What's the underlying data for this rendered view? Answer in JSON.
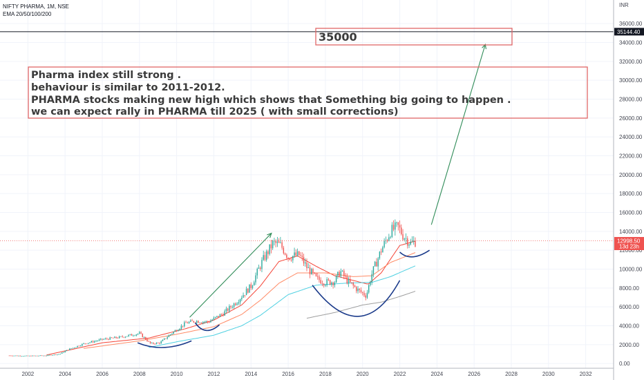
{
  "header": {
    "title": "NIFTY PHARMA, 1M, NSE",
    "indicator": "EMA 20/50/100/200"
  },
  "axis_unit": "INR",
  "price_tags": {
    "level": "35144.40",
    "last": "12998.50",
    "countdown": "13d 23h"
  },
  "annotations": {
    "target": "35000",
    "note_lines": [
      "Pharma index still strong .",
      "behaviour is similar to 2011-2012.",
      "PHARMA stocks making new high which shows that Something big going to happen .",
      "we can expect rally in PHARMA  till 2025 ( with small corrections)"
    ]
  },
  "colors": {
    "up": "#26a69a",
    "down": "#ef5350",
    "ema20": "#f44336",
    "ema50": "#ff8a65",
    "ema100": "#4dd0e1",
    "ema200": "#9e9e9e",
    "arrow": "#2e8b57",
    "arc": "#1a3a8a",
    "box": "#e06666",
    "level": "#131722"
  },
  "chart_data": {
    "type": "candlestick",
    "title": "NIFTY PHARMA, 1M, NSE",
    "ylabel": "INR",
    "x_ticks": [
      "2002",
      "2004",
      "2006",
      "2008",
      "2010",
      "2012",
      "2014",
      "2016",
      "2018",
      "2020",
      "2022",
      "2024",
      "2026",
      "2028",
      "2030",
      "2032"
    ],
    "y_ticks": [
      "0.00",
      "2000.00",
      "4000.00",
      "6000.00",
      "8000.00",
      "10000.00",
      "12000.00",
      "14000.00",
      "16000.00",
      "18000.00",
      "20000.00",
      "22000.00",
      "24000.00",
      "26000.00",
      "28000.00",
      "30000.00",
      "32000.00",
      "34000.00",
      "36000.00"
    ],
    "ylim": [
      -500,
      38500
    ],
    "xlim": [
      2000.5,
      2033.5
    ],
    "price_keypoints": [
      [
        2001.0,
        850
      ],
      [
        2002.0,
        800
      ],
      [
        2003.0,
        850
      ],
      [
        2003.7,
        1000
      ],
      [
        2004.2,
        1500
      ],
      [
        2005.0,
        2100
      ],
      [
        2006.0,
        2550
      ],
      [
        2007.0,
        2800
      ],
      [
        2008.0,
        3200
      ],
      [
        2008.6,
        2100
      ],
      [
        2009.1,
        2200
      ],
      [
        2009.8,
        3300
      ],
      [
        2010.5,
        4300
      ],
      [
        2011.0,
        4500
      ],
      [
        2011.7,
        4400
      ],
      [
        2012.5,
        5300
      ],
      [
        2013.2,
        6500
      ],
      [
        2014.0,
        8200
      ],
      [
        2014.6,
        10800
      ],
      [
        2015.2,
        12800
      ],
      [
        2015.6,
        12500
      ],
      [
        2016.0,
        11300
      ],
      [
        2016.6,
        11500
      ],
      [
        2017.0,
        10200
      ],
      [
        2017.5,
        9000
      ],
      [
        2018.0,
        8600
      ],
      [
        2018.5,
        8700
      ],
      [
        2018.8,
        9800
      ],
      [
        2019.2,
        8700
      ],
      [
        2019.8,
        7700
      ],
      [
        2020.2,
        7200
      ],
      [
        2020.5,
        9500
      ],
      [
        2021.0,
        12000
      ],
      [
        2021.5,
        14000
      ],
      [
        2021.9,
        14500
      ],
      [
        2022.2,
        13500
      ],
      [
        2022.6,
        12700
      ],
      [
        2022.9,
        12998.5
      ]
    ],
    "ema_keypoints": {
      "EMA 20": [
        [
          2003.0,
          900
        ],
        [
          2006.0,
          2200
        ],
        [
          2008.5,
          2700
        ],
        [
          2010.5,
          3700
        ],
        [
          2012.0,
          4600
        ],
        [
          2013.5,
          6200
        ],
        [
          2014.5,
          8200
        ],
        [
          2015.5,
          10800
        ],
        [
          2016.5,
          11400
        ],
        [
          2017.5,
          10300
        ],
        [
          2018.5,
          9300
        ],
        [
          2019.5,
          8800
        ],
        [
          2020.3,
          8400
        ],
        [
          2021.0,
          9600
        ],
        [
          2022.0,
          12500
        ],
        [
          2022.9,
          13000
        ]
      ],
      "EMA 50": [
        [
          2005.0,
          1600
        ],
        [
          2008.0,
          2400
        ],
        [
          2010.0,
          3100
        ],
        [
          2012.0,
          3900
        ],
        [
          2013.5,
          5200
        ],
        [
          2014.5,
          6700
        ],
        [
          2015.5,
          8500
        ],
        [
          2016.5,
          9600
        ],
        [
          2018.0,
          9600
        ],
        [
          2019.5,
          9200
        ],
        [
          2020.5,
          9300
        ],
        [
          2021.5,
          10700
        ],
        [
          2022.9,
          11800
        ]
      ],
      "EMA 100": [
        [
          2008.5,
          1700
        ],
        [
          2010.0,
          2300
        ],
        [
          2012.0,
          3000
        ],
        [
          2013.5,
          4000
        ],
        [
          2014.5,
          5100
        ],
        [
          2016.0,
          7300
        ],
        [
          2017.5,
          8300
        ],
        [
          2019.0,
          8500
        ],
        [
          2020.5,
          8600
        ],
        [
          2021.5,
          9200
        ],
        [
          2022.9,
          10400
        ]
      ],
      "EMA 200": [
        [
          2017.0,
          4800
        ],
        [
          2018.5,
          5400
        ],
        [
          2020.0,
          6200
        ],
        [
          2021.0,
          6500
        ],
        [
          2022.0,
          7100
        ],
        [
          2022.9,
          7700
        ]
      ]
    },
    "drawings": {
      "level_line": 35144.4,
      "arrows": [
        {
          "from": [
            2010.7,
            4900
          ],
          "to": [
            2015.1,
            13800
          ]
        },
        {
          "from": [
            2023.7,
            14700
          ],
          "to": [
            2026.6,
            33800
          ]
        }
      ],
      "arcs": [
        {
          "points": [
            [
              2007.9,
              2200
            ],
            [
              2009.3,
              1700
            ],
            [
              2010.8,
              2400
            ]
          ]
        },
        {
          "points": [
            [
              2011.0,
              4300
            ],
            [
              2011.6,
              3500
            ],
            [
              2012.3,
              4100
            ]
          ]
        },
        {
          "points": [
            [
              2017.3,
              8300
            ],
            [
              2019.8,
              5000
            ],
            [
              2022.0,
              8800
            ]
          ]
        },
        {
          "points": [
            [
              2022.0,
              11800
            ],
            [
              2022.7,
              11300
            ],
            [
              2023.6,
              12000
            ]
          ]
        }
      ],
      "level_price": 35144.4,
      "last_price": 12998.5
    }
  }
}
